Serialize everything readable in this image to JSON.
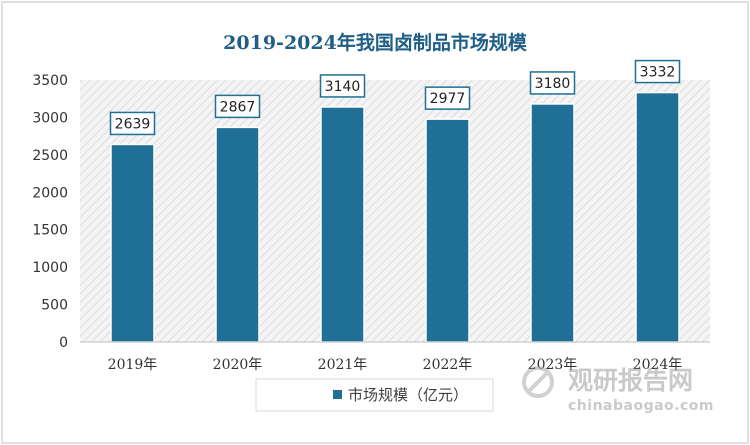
{
  "chart_data": {
    "type": "bar",
    "title": "2019-2024年我国卤制品市场规模",
    "categories": [
      "2019年",
      "2020年",
      "2021年",
      "2022年",
      "2023年",
      "2024年"
    ],
    "series": [
      {
        "name": "市场规模（亿元）",
        "values": [
          2639,
          2867,
          3140,
          2977,
          3180,
          3332
        ]
      }
    ],
    "data_labels": [
      "2639",
      "2867",
      "3140",
      "2977",
      "3180",
      "3332"
    ],
    "yticks": [
      "0",
      "500",
      "1000",
      "1500",
      "2000",
      "2500",
      "3000",
      "3500"
    ],
    "ylim": [
      0,
      3500
    ],
    "xlabel": "",
    "ylabel": "",
    "legend_position": "bottom",
    "bar_color": "#1f6f96",
    "title_color": "#1f5f87"
  },
  "watermark": {
    "brand": "观研报告网",
    "url": "chinabaogao.com"
  }
}
